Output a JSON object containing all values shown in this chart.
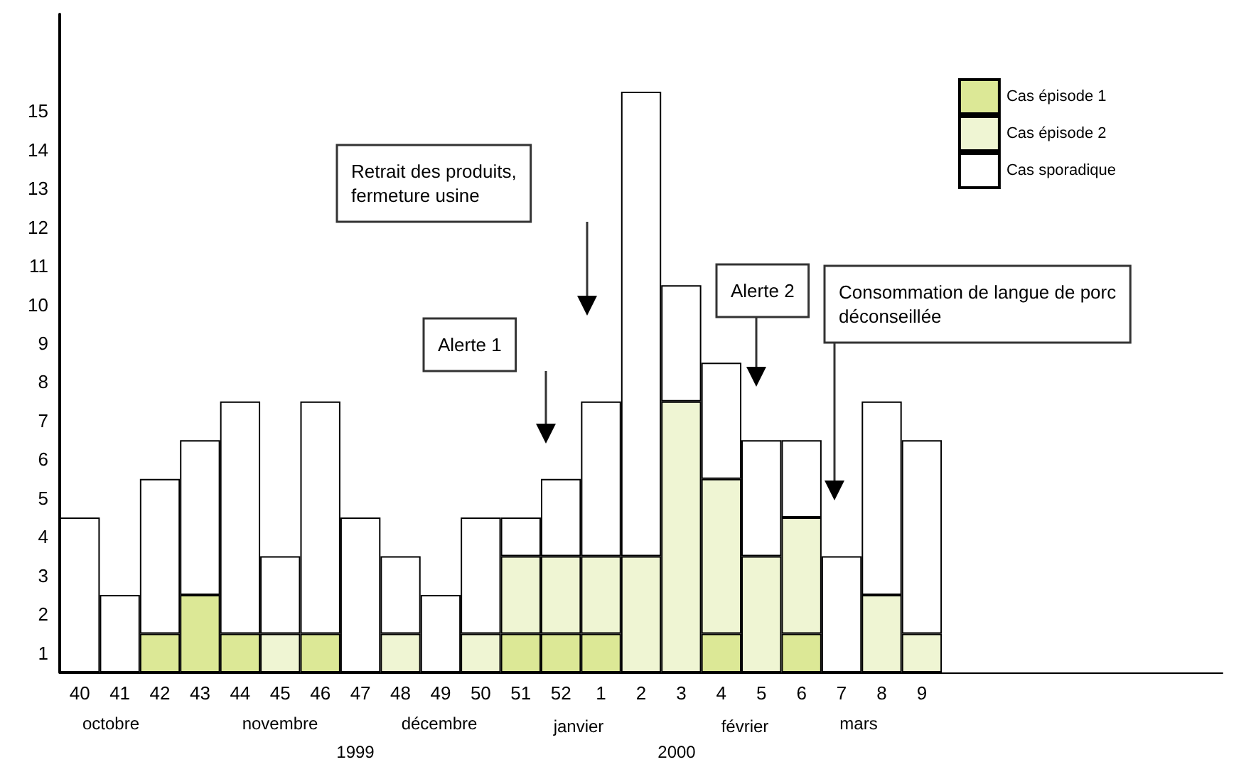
{
  "chart_data": {
    "type": "bar",
    "stacked": true,
    "categories": [
      "40",
      "41",
      "42",
      "43",
      "44",
      "45",
      "46",
      "47",
      "48",
      "49",
      "50",
      "51",
      "52",
      "1",
      "2",
      "3",
      "4",
      "5",
      "6",
      "7",
      "8",
      "9",
      null,
      null,
      null,
      null,
      null,
      null,
      null
    ],
    "series": [
      {
        "name": "Cas épisode 1",
        "color": "#dce896",
        "values": [
          0,
          0,
          1,
          2,
          1,
          0,
          1,
          0,
          0,
          0,
          0,
          1,
          1,
          1,
          0,
          0,
          1,
          0,
          1,
          0,
          0,
          0,
          null,
          null,
          null,
          null,
          null,
          null,
          null
        ]
      },
      {
        "name": "Cas épisode 2",
        "color": "#eff5d3",
        "values": [
          0,
          0,
          0,
          0,
          0,
          1,
          0,
          0,
          1,
          0,
          1,
          2,
          2,
          2,
          3,
          7,
          4,
          3,
          3,
          0,
          2,
          1,
          null,
          null,
          null,
          null,
          null,
          null,
          null
        ]
      },
      {
        "name": "Cas sporadique",
        "color": "#ffffff",
        "values": [
          4,
          2,
          4,
          4,
          6,
          2,
          6,
          4,
          2,
          2,
          3,
          1,
          2,
          4,
          12,
          3,
          3,
          3,
          2,
          3,
          5,
          5,
          null,
          null,
          null,
          null,
          null,
          null,
          null
        ]
      }
    ],
    "ylim": [
      0,
      17
    ],
    "yticks": [
      {
        "value": 0.5,
        "label": "1"
      },
      {
        "value": 1.5,
        "label": "2"
      },
      {
        "value": 2.5,
        "label": "3"
      },
      {
        "value": 3.5,
        "label": "4"
      },
      {
        "value": 4.5,
        "label": "5"
      },
      {
        "value": 5.5,
        "label": "6"
      },
      {
        "value": 6.5,
        "label": "7"
      },
      {
        "value": 7.5,
        "label": "8"
      },
      {
        "value": 8.5,
        "label": "9"
      },
      {
        "value": 9.5,
        "label": "10"
      },
      {
        "value": 10.5,
        "label": "11"
      },
      {
        "value": 11.5,
        "label": "12"
      },
      {
        "value": 12.5,
        "label": "13"
      },
      {
        "value": 13.5,
        "label": "14"
      },
      {
        "value": 14.5,
        "label": "15"
      }
    ],
    "grid": false,
    "legend": "top right",
    "annotations": [
      "Retrait des produits,\nfermeture usine",
      "Alerte 1",
      "Alerte 2",
      "Consommation de langue de porc\ndéconseillée",
      "octobre",
      "novembre",
      "décembre",
      "janvier",
      "février",
      "mars",
      "1999",
      "2000"
    ]
  }
}
